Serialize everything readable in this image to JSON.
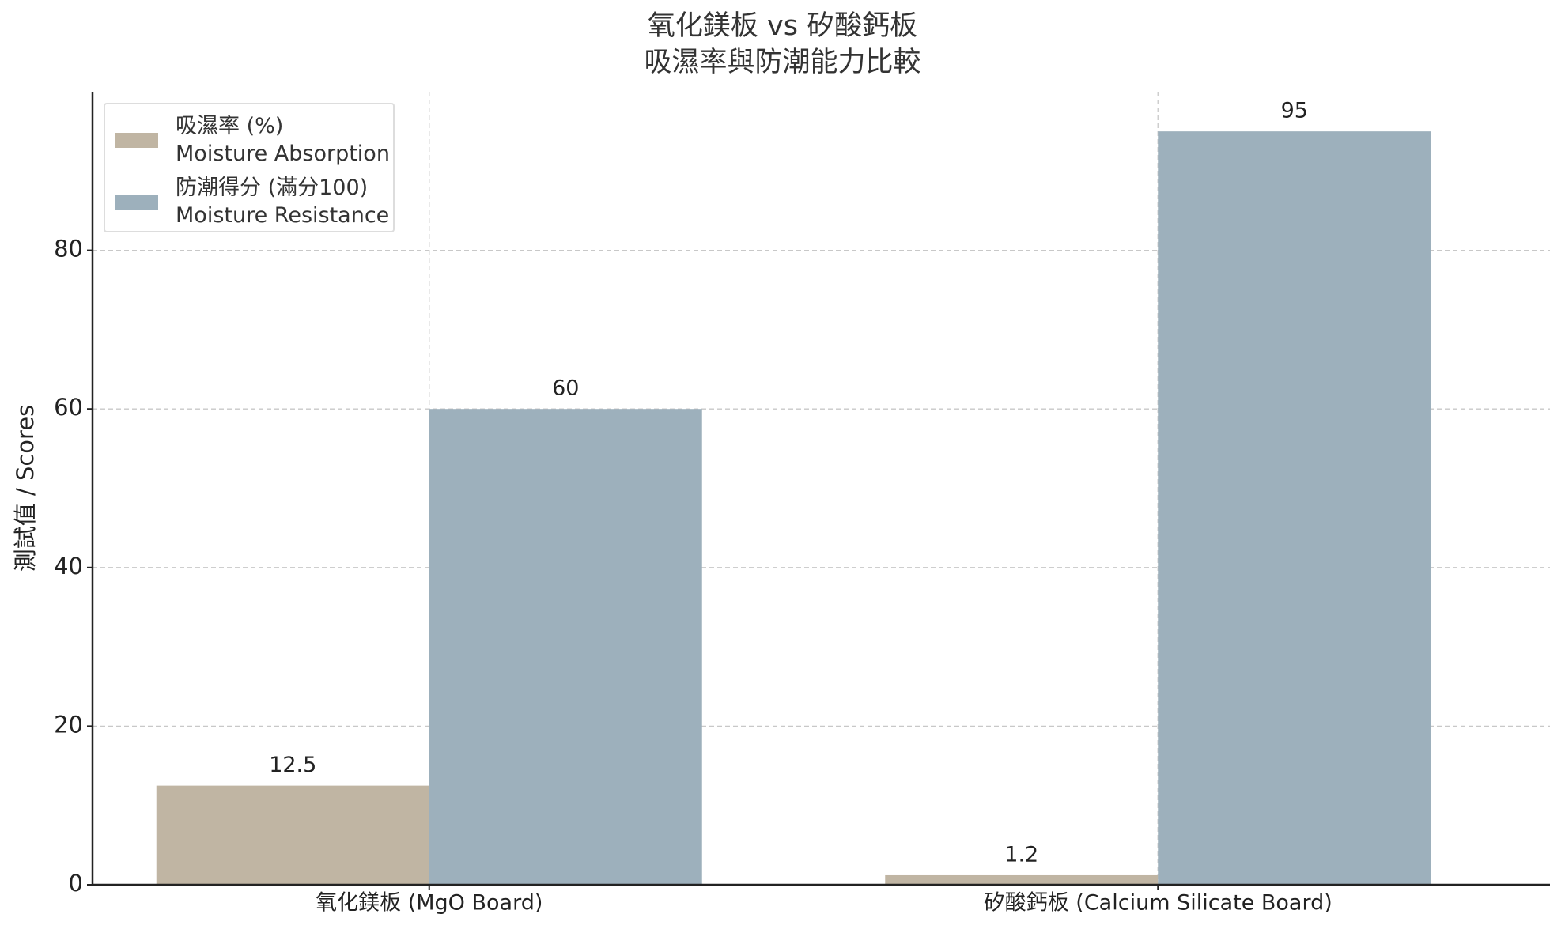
{
  "chart_data": {
    "type": "bar",
    "title": "氧化鎂板 vs 矽酸鈣板\n吸濕率與防潮能力比較",
    "y_label": "測試值 / Scores",
    "categories": [
      "氧化鎂板 (MgO Board)",
      "矽酸鈣板 (Calcium Silicate Board)"
    ],
    "series": [
      {
        "name": "吸濕率 (%)\nMoisture Absorption",
        "color": "#c0b5a3",
        "values": [
          12.5,
          1.2
        ]
      },
      {
        "name": "防潮得分 (滿分100)\nMoisture Resistance",
        "color": "#9db0bc",
        "values": [
          60,
          95
        ]
      }
    ],
    "ylim": [
      0,
      100
    ],
    "yticks": [
      0,
      20,
      40,
      60,
      80
    ],
    "grid": true,
    "legend": "upper left"
  }
}
